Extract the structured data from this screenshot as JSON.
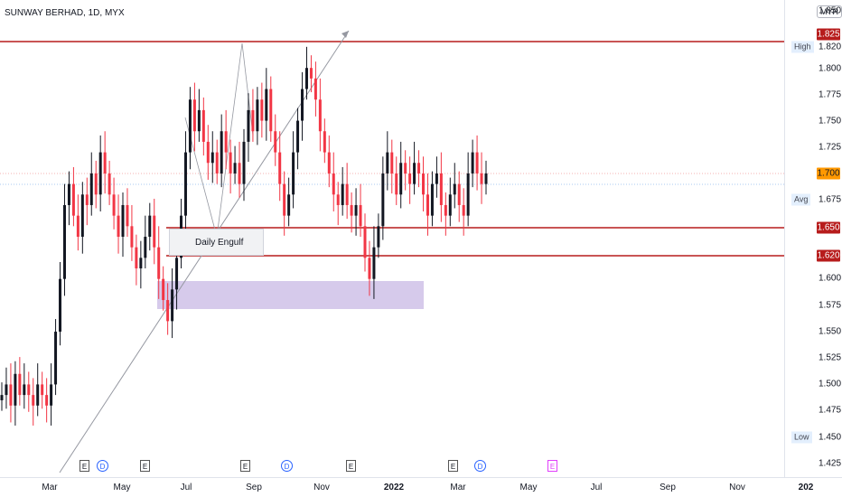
{
  "header": {
    "title": "SUNWAY BERHAD, 1D, MYX",
    "currency": "MYR"
  },
  "colors": {
    "up": "#131722",
    "down": "#f23645",
    "resistance": "#b71c1c",
    "current": "#ff9800",
    "zone": "#d1c4e9"
  },
  "price_axis": {
    "ticks": [
      "1.850",
      "1.800",
      "1.775",
      "1.750",
      "1.725",
      "1.675",
      "1.600",
      "1.575",
      "1.550",
      "1.525",
      "1.500",
      "1.475",
      "1.425"
    ],
    "tick_values": [
      1.85,
      1.8,
      1.775,
      1.75,
      1.725,
      1.675,
      1.6,
      1.575,
      1.55,
      1.525,
      1.5,
      1.475,
      1.425
    ]
  },
  "price_tags": {
    "high_line": "1.825",
    "high_label": "High",
    "high_value": "1.820",
    "current": "1.700",
    "avg_label": "Avg",
    "avg_value": "1.675",
    "support_1": "1.650",
    "support_2": "1.620",
    "low_label": "Low",
    "low_value": "1.450"
  },
  "time_axis": {
    "labels": [
      "Mar",
      "May",
      "Jul",
      "Sep",
      "Nov",
      "2022",
      "Mar",
      "May",
      "Jul",
      "Sep",
      "Nov",
      "202"
    ],
    "bold": [
      false,
      false,
      false,
      false,
      false,
      true,
      false,
      false,
      false,
      false,
      false,
      true
    ]
  },
  "annotations": {
    "engulf_label": "Daily Engulf"
  },
  "events": [
    {
      "type": "E",
      "style": "box"
    },
    {
      "type": "D",
      "style": "circle"
    },
    {
      "type": "E",
      "style": "box"
    },
    {
      "type": "E",
      "style": "box"
    },
    {
      "type": "D",
      "style": "circle"
    },
    {
      "type": "E",
      "style": "box"
    },
    {
      "type": "E",
      "style": "box"
    },
    {
      "type": "D",
      "style": "circle"
    },
    {
      "type": "E",
      "style": "magenta"
    }
  ],
  "chart_data": {
    "type": "candlestick",
    "title": "SUNWAY BERHAD, 1D, MYX",
    "ylim": [
      1.41,
      1.86
    ],
    "levels": [
      1.825,
      1.7,
      1.65,
      1.62
    ],
    "zone": [
      1.572,
      1.598
    ],
    "closes": [
      1.49,
      1.5,
      1.48,
      1.51,
      1.49,
      1.5,
      1.49,
      1.48,
      1.5,
      1.49,
      1.48,
      1.5,
      1.55,
      1.6,
      1.67,
      1.69,
      1.66,
      1.64,
      1.68,
      1.67,
      1.7,
      1.68,
      1.72,
      1.7,
      1.68,
      1.66,
      1.64,
      1.67,
      1.65,
      1.63,
      1.61,
      1.62,
      1.64,
      1.66,
      1.63,
      1.6,
      1.58,
      1.56,
      1.59,
      1.62,
      1.66,
      1.72,
      1.77,
      1.74,
      1.76,
      1.73,
      1.71,
      1.72,
      1.7,
      1.74,
      1.72,
      1.7,
      1.71,
      1.69,
      1.73,
      1.76,
      1.74,
      1.77,
      1.75,
      1.78,
      1.74,
      1.72,
      1.69,
      1.66,
      1.68,
      1.72,
      1.75,
      1.78,
      1.8,
      1.79,
      1.77,
      1.74,
      1.72,
      1.7,
      1.68,
      1.67,
      1.69,
      1.67,
      1.66,
      1.67,
      1.65,
      1.62,
      1.6,
      1.63,
      1.65,
      1.7,
      1.72,
      1.7,
      1.68,
      1.71,
      1.7,
      1.69,
      1.71,
      1.7,
      1.68,
      1.66,
      1.69,
      1.7,
      1.67,
      1.66,
      1.68,
      1.69,
      1.67,
      1.66,
      1.7,
      1.72,
      1.7,
      1.69,
      1.7
    ]
  }
}
